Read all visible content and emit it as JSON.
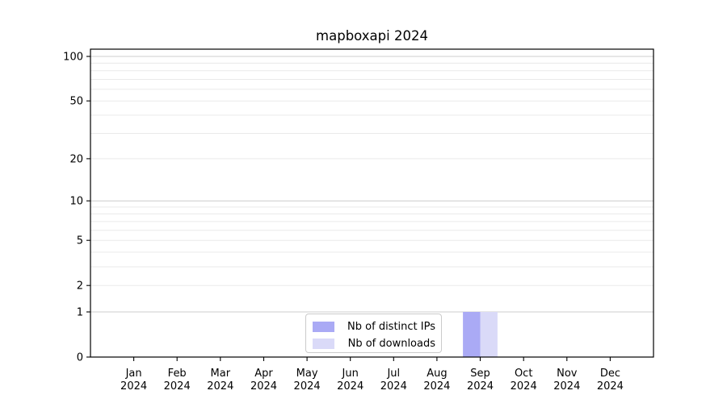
{
  "chart_data": {
    "type": "bar",
    "title": "mapboxapi 2024",
    "categories": [
      "Jan",
      "Feb",
      "Mar",
      "Apr",
      "May",
      "Jun",
      "Jul",
      "Aug",
      "Sep",
      "Oct",
      "Nov",
      "Dec"
    ],
    "x_tick_year": "2024",
    "series": [
      {
        "name": "Nb of distinct IPs",
        "color": "#aaaaf5",
        "values": [
          0,
          0,
          0,
          0,
          0,
          0,
          0,
          0,
          1,
          0,
          0,
          0
        ]
      },
      {
        "name": "Nb of downloads",
        "color": "#dadaf8",
        "values": [
          0,
          0,
          0,
          0,
          0,
          0,
          0,
          0,
          1,
          0,
          0,
          0
        ]
      }
    ],
    "y_scale": "log1p",
    "y_ticks": [
      0,
      1,
      2,
      5,
      10,
      20,
      50,
      100
    ],
    "y_decade_gridlines": [
      1,
      10,
      100
    ],
    "y_minor_gridlines": [
      3,
      4,
      6,
      7,
      8,
      9,
      30,
      40,
      60,
      70,
      80,
      90
    ],
    "ylim": [
      0,
      112
    ],
    "xlabel": "",
    "ylabel": "",
    "grid": "horizontal",
    "legend_position": "lower center",
    "colors": {
      "grid_major": "#cccccc",
      "grid_minor": "#eaeaea",
      "axis": "#000000",
      "text": "#000000",
      "background": "#ffffff"
    }
  }
}
